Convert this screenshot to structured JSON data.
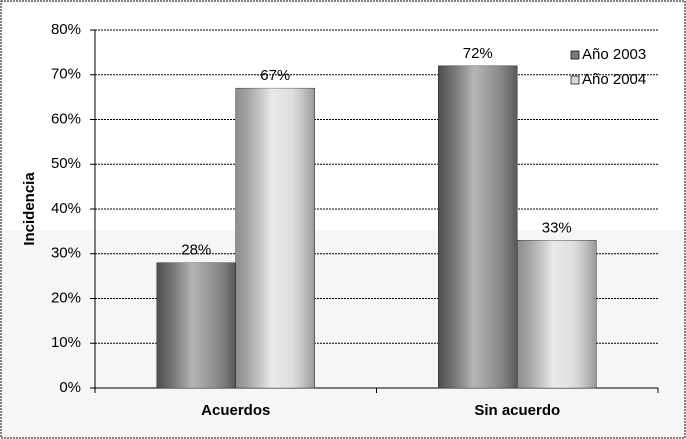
{
  "chart_data": {
    "type": "bar",
    "y_label": "Incidencia",
    "categories": [
      "Acuerdos",
      "Sin acuerdo"
    ],
    "series": [
      {
        "name": "Año 2003",
        "color": "#7a7a7a",
        "values": [
          28,
          72
        ],
        "value_labels": [
          "28%",
          "72%"
        ]
      },
      {
        "name": "Año 2004",
        "color": "#d8d8d8",
        "values": [
          67,
          33
        ],
        "value_labels": [
          "67%",
          "33%"
        ]
      }
    ],
    "ylim": [
      0,
      80
    ],
    "yticks": [
      {
        "value": 0,
        "label": "0%"
      },
      {
        "value": 10,
        "label": "10%"
      },
      {
        "value": 20,
        "label": "20%"
      },
      {
        "value": 30,
        "label": "30%"
      },
      {
        "value": 40,
        "label": "40%"
      },
      {
        "value": 50,
        "label": "50%"
      },
      {
        "value": 60,
        "label": "60%"
      },
      {
        "value": 70,
        "label": "70%"
      },
      {
        "value": 80,
        "label": "80%"
      }
    ],
    "grid": true,
    "legend": "upper right"
  }
}
